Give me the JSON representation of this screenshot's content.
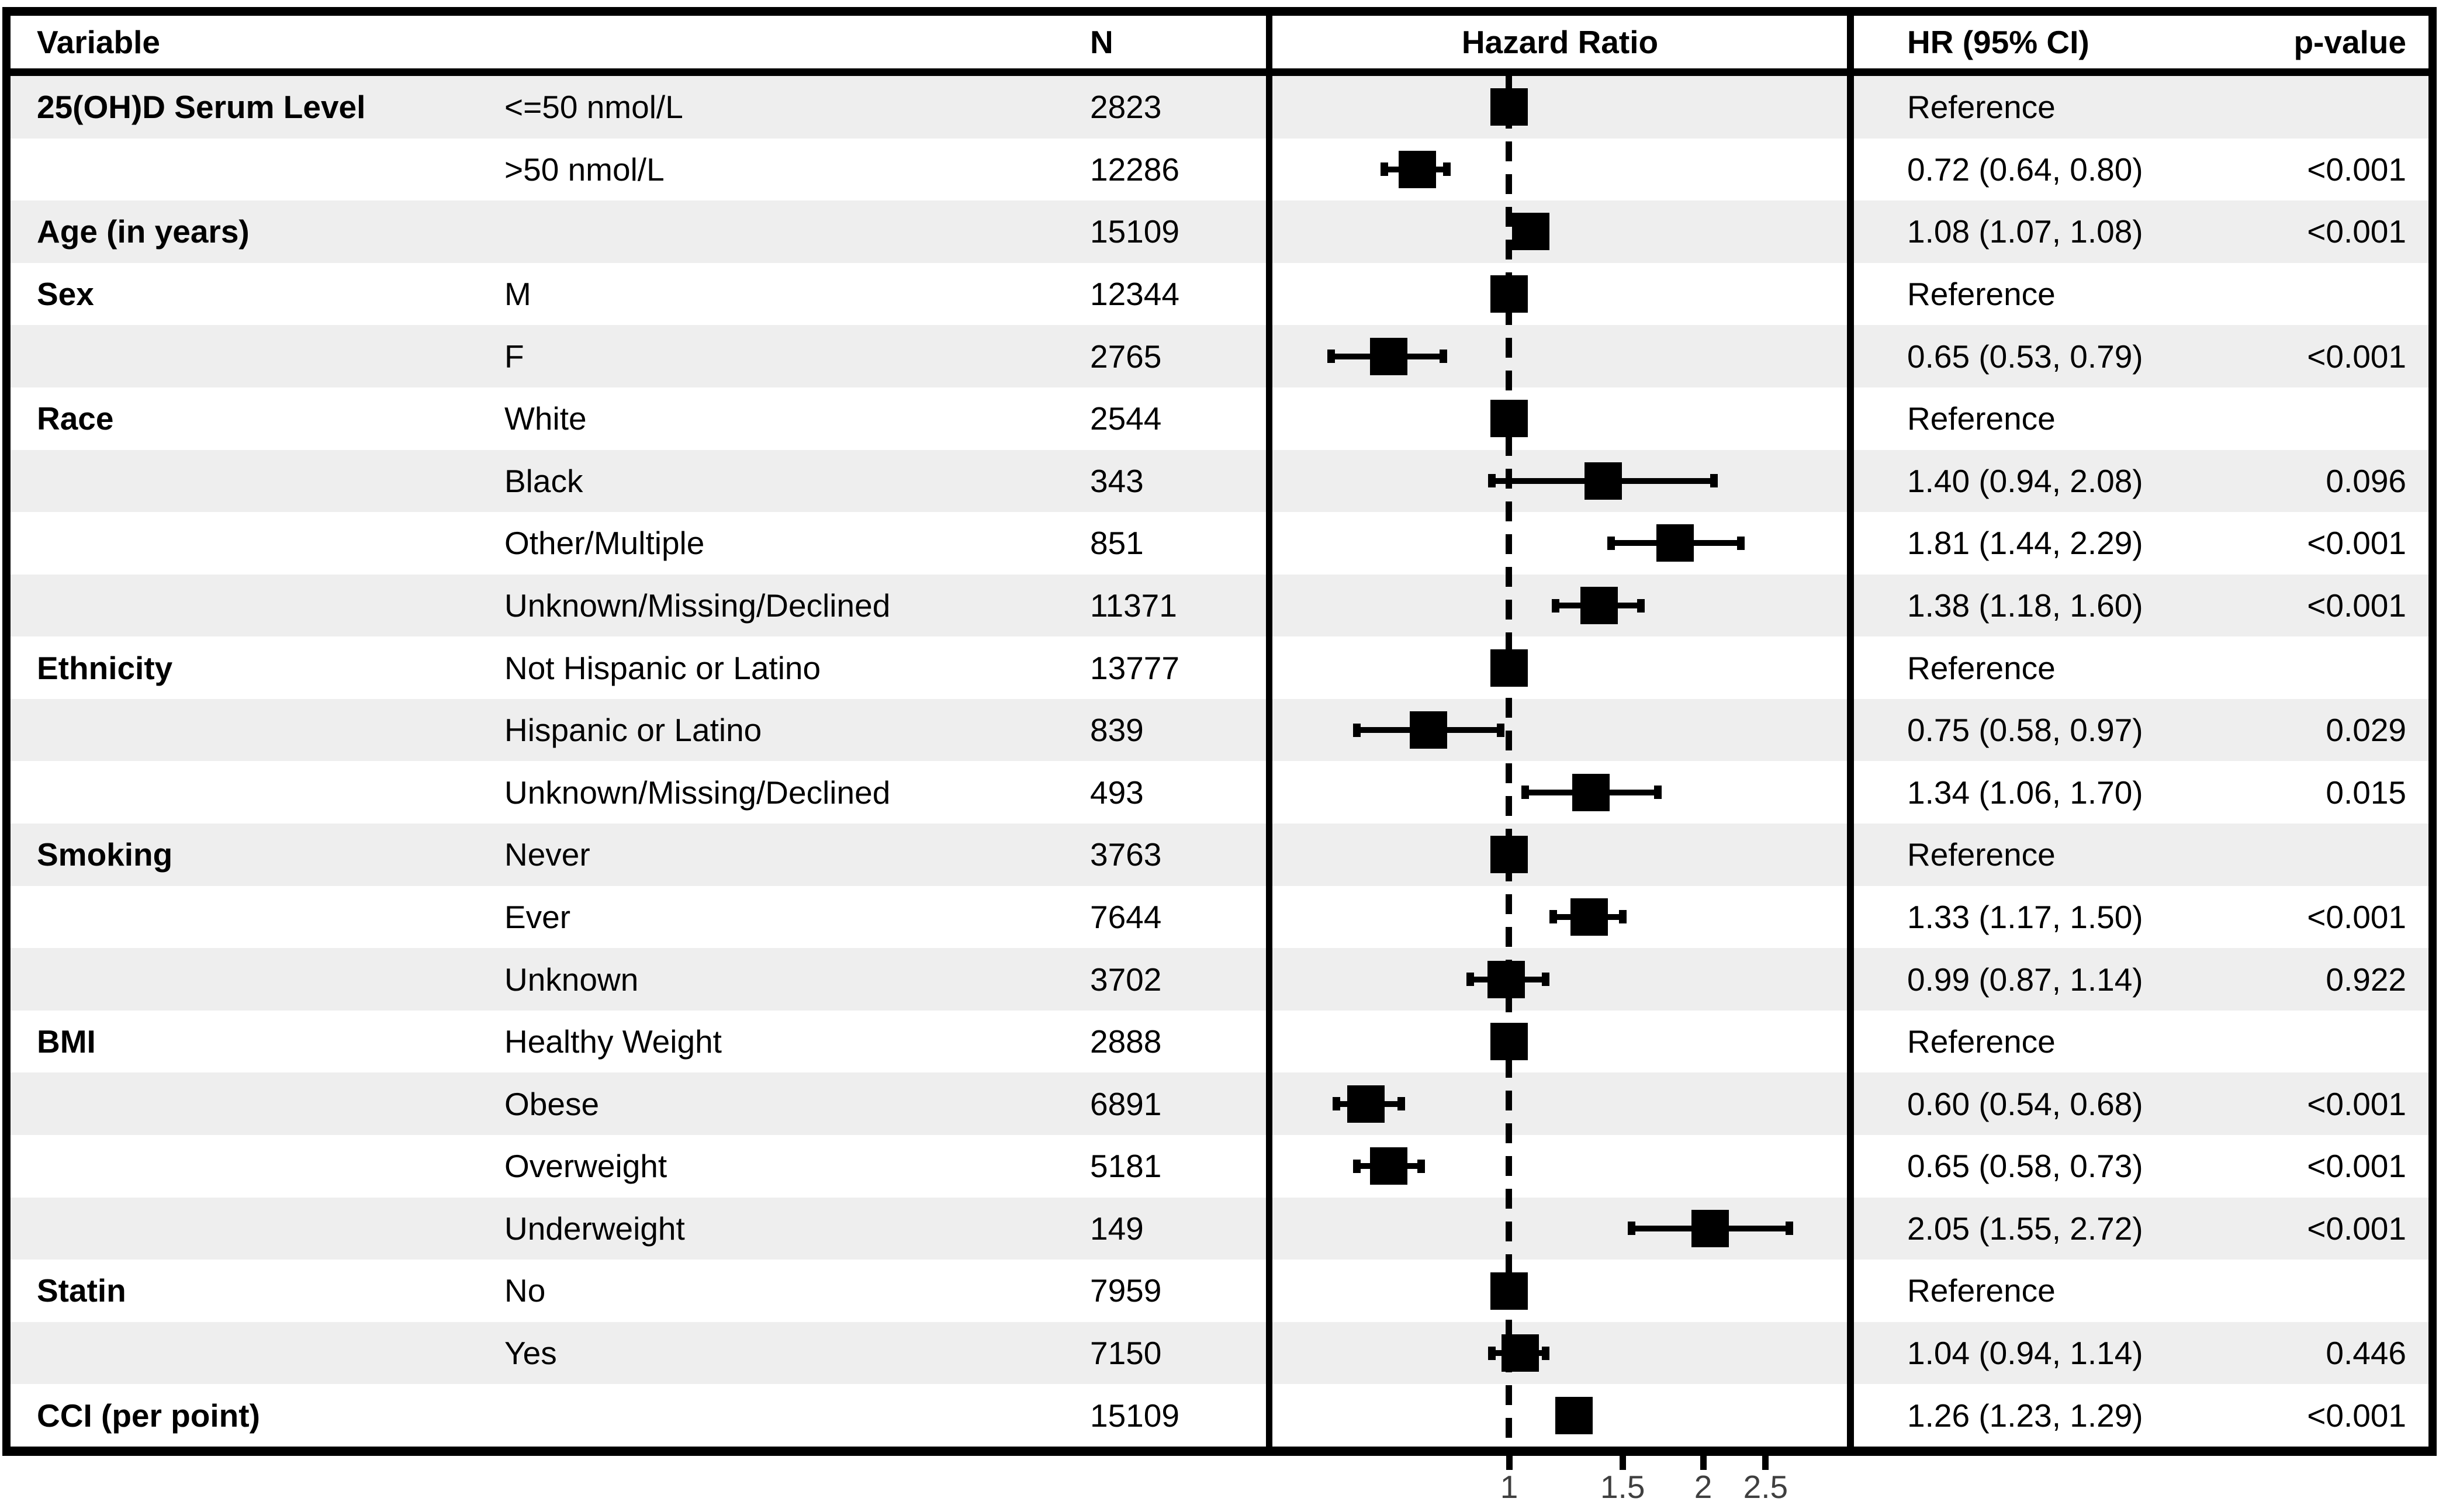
{
  "header": {
    "variable": "Variable",
    "n": "N",
    "hazard_ratio": "Hazard Ratio",
    "hr_ci": "HR (95% CI)",
    "p_value": "p-value"
  },
  "colors": {
    "row_shade": "#eeeeee",
    "row_plain": "#ffffff",
    "border": "#000000",
    "text": "#000000",
    "axis_label": "#3f3f3f",
    "marker": "#000000"
  },
  "chart_data": {
    "type": "forest-plot",
    "x_axis": {
      "scale": "log",
      "ticks": [
        1,
        1.5,
        2,
        2.5
      ],
      "tick_labels": [
        "1",
        "1.5",
        "2",
        "2.5"
      ],
      "domain": [
        0.42,
        3.43
      ],
      "reference_line": 1
    },
    "marker_shape": "square",
    "rows": [
      {
        "variable": "25(OH)D Serum Level",
        "level": "<=50 nmol/L",
        "n": "2823",
        "hr": 1.0,
        "lo": null,
        "hi": null,
        "hr_ci": "Reference",
        "p": ""
      },
      {
        "variable": "",
        "level": ">50 nmol/L",
        "n": "12286",
        "hr": 0.72,
        "lo": 0.64,
        "hi": 0.8,
        "hr_ci": "0.72 (0.64, 0.80)",
        "p": "<0.001"
      },
      {
        "variable": "Age (in years)",
        "level": "",
        "n": "15109",
        "hr": 1.08,
        "lo": 1.07,
        "hi": 1.08,
        "hr_ci": "1.08 (1.07, 1.08)",
        "p": "<0.001"
      },
      {
        "variable": "Sex",
        "level": "M",
        "n": "12344",
        "hr": 1.0,
        "lo": null,
        "hi": null,
        "hr_ci": "Reference",
        "p": ""
      },
      {
        "variable": "",
        "level": "F",
        "n": "2765",
        "hr": 0.65,
        "lo": 0.53,
        "hi": 0.79,
        "hr_ci": "0.65 (0.53, 0.79)",
        "p": "<0.001"
      },
      {
        "variable": "Race",
        "level": "White",
        "n": "2544",
        "hr": 1.0,
        "lo": null,
        "hi": null,
        "hr_ci": "Reference",
        "p": ""
      },
      {
        "variable": "",
        "level": "Black",
        "n": "343",
        "hr": 1.4,
        "lo": 0.94,
        "hi": 2.08,
        "hr_ci": "1.40 (0.94, 2.08)",
        "p": "0.096"
      },
      {
        "variable": "",
        "level": "Other/Multiple",
        "n": "851",
        "hr": 1.81,
        "lo": 1.44,
        "hi": 2.29,
        "hr_ci": "1.81 (1.44, 2.29)",
        "p": "<0.001"
      },
      {
        "variable": "",
        "level": "Unknown/Missing/Declined",
        "n": "11371",
        "hr": 1.38,
        "lo": 1.18,
        "hi": 1.6,
        "hr_ci": "1.38 (1.18, 1.60)",
        "p": "<0.001"
      },
      {
        "variable": "Ethnicity",
        "level": "Not Hispanic or Latino",
        "n": "13777",
        "hr": 1.0,
        "lo": null,
        "hi": null,
        "hr_ci": "Reference",
        "p": ""
      },
      {
        "variable": "",
        "level": "Hispanic or Latino",
        "n": "839",
        "hr": 0.75,
        "lo": 0.58,
        "hi": 0.97,
        "hr_ci": "0.75 (0.58, 0.97)",
        "p": "0.029"
      },
      {
        "variable": "",
        "level": "Unknown/Missing/Declined",
        "n": "493",
        "hr": 1.34,
        "lo": 1.06,
        "hi": 1.7,
        "hr_ci": "1.34 (1.06, 1.70)",
        "p": "0.015"
      },
      {
        "variable": "Smoking",
        "level": "Never",
        "n": "3763",
        "hr": 1.0,
        "lo": null,
        "hi": null,
        "hr_ci": "Reference",
        "p": ""
      },
      {
        "variable": "",
        "level": "Ever",
        "n": "7644",
        "hr": 1.33,
        "lo": 1.17,
        "hi": 1.5,
        "hr_ci": "1.33 (1.17, 1.50)",
        "p": "<0.001"
      },
      {
        "variable": "",
        "level": "Unknown",
        "n": "3702",
        "hr": 0.99,
        "lo": 0.87,
        "hi": 1.14,
        "hr_ci": "0.99 (0.87, 1.14)",
        "p": "0.922"
      },
      {
        "variable": "BMI",
        "level": "Healthy Weight",
        "n": "2888",
        "hr": 1.0,
        "lo": null,
        "hi": null,
        "hr_ci": "Reference",
        "p": ""
      },
      {
        "variable": "",
        "level": "Obese",
        "n": "6891",
        "hr": 0.6,
        "lo": 0.54,
        "hi": 0.68,
        "hr_ci": "0.60 (0.54, 0.68)",
        "p": "<0.001"
      },
      {
        "variable": "",
        "level": "Overweight",
        "n": "5181",
        "hr": 0.65,
        "lo": 0.58,
        "hi": 0.73,
        "hr_ci": "0.65 (0.58, 0.73)",
        "p": "<0.001"
      },
      {
        "variable": "",
        "level": "Underweight",
        "n": "149",
        "hr": 2.05,
        "lo": 1.55,
        "hi": 2.72,
        "hr_ci": "2.05 (1.55, 2.72)",
        "p": "<0.001"
      },
      {
        "variable": "Statin",
        "level": "No",
        "n": "7959",
        "hr": 1.0,
        "lo": null,
        "hi": null,
        "hr_ci": "Reference",
        "p": ""
      },
      {
        "variable": "",
        "level": "Yes",
        "n": "7150",
        "hr": 1.04,
        "lo": 0.94,
        "hi": 1.14,
        "hr_ci": "1.04 (0.94, 1.14)",
        "p": "0.446"
      },
      {
        "variable": "CCI (per point)",
        "level": "",
        "n": "15109",
        "hr": 1.26,
        "lo": 1.23,
        "hi": 1.29,
        "hr_ci": "1.26 (1.23, 1.29)",
        "p": "<0.001"
      }
    ]
  }
}
